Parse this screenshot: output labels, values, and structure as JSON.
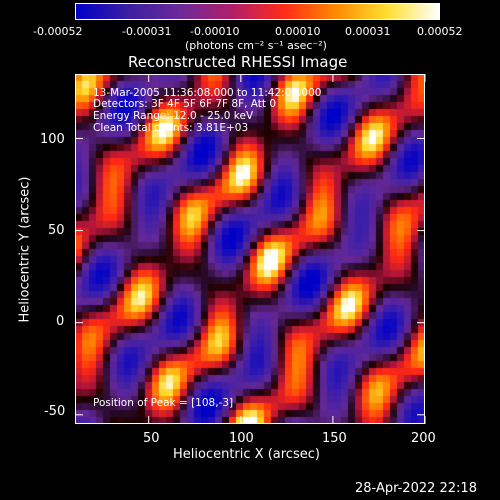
{
  "colorbar": {
    "colors": [
      "#0000c8",
      "#3a1fa0",
      "#6a2a9a",
      "#b01f6a",
      "#ff2a1a",
      "#ff8a00",
      "#ffe030",
      "#ffffff"
    ],
    "ticks": [
      "-0.00052",
      "-0.00031",
      "-0.00010",
      "0.00010",
      "0.00031",
      "0.00052"
    ],
    "unit_label": "(photons cm⁻² s⁻¹ asec⁻²)"
  },
  "title": "Reconstructed RHESSI Image",
  "overlay": {
    "line1": "13-Mar-2005 11:36:08.000 to 11:42:08.000",
    "line2": "Detectors: 3F 4F 5F 6F 7F 8F, Att 0",
    "line3": "Energy Range: 12.0 - 25.0 keV",
    "line4": "Clean    Total counts: 3.81E+03",
    "peak": "Position of Peak = [108,-3]"
  },
  "axes": {
    "xlabel": "Heliocentric X (arcsec)",
    "ylabel": "Heliocentric Y (arcsec)",
    "xticks": [
      "50",
      "100",
      "150",
      "200"
    ],
    "yticks": [
      "100",
      "50",
      "0",
      "-50"
    ],
    "xlim": [
      10,
      200
    ],
    "ylim": [
      -55,
      135
    ]
  },
  "footer": {
    "timestamp": "28-Apr-2022 22:18"
  }
}
